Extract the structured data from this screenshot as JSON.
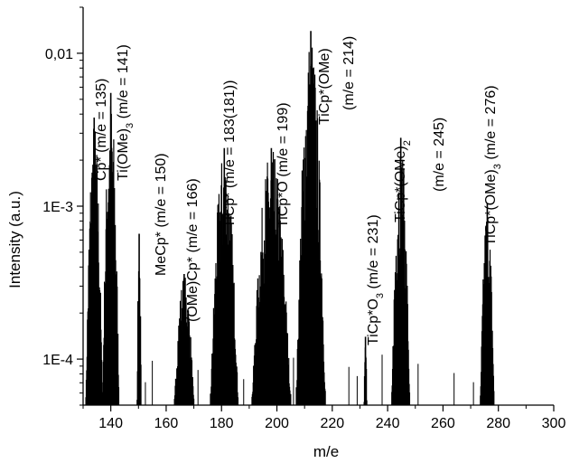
{
  "chart_data": {
    "type": "bar",
    "xlabel": "m/e",
    "ylabel": "Intensity (a.u.)",
    "xlim": [
      130,
      300
    ],
    "ylim": [
      5e-05,
      0.02
    ],
    "y_scale": "log",
    "x_ticks": [
      {
        "value": 140,
        "label": "140"
      },
      {
        "value": 160,
        "label": "160"
      },
      {
        "value": 180,
        "label": "180"
      },
      {
        "value": 200,
        "label": "200"
      },
      {
        "value": 220,
        "label": "220"
      },
      {
        "value": 240,
        "label": "240"
      },
      {
        "value": 260,
        "label": "260"
      },
      {
        "value": 280,
        "label": "280"
      },
      {
        "value": 300,
        "label": "300"
      }
    ],
    "y_ticks": [
      {
        "value": 0.0001,
        "label": "1E-4"
      },
      {
        "value": 0.001,
        "label": "1E-3"
      },
      {
        "value": 0.01,
        "label": "0,01"
      }
    ],
    "grid": false,
    "peak_groups": [
      {
        "lo": 131.0,
        "hi": 137.0,
        "max": 0.0038
      },
      {
        "lo": 137.0,
        "hi": 143.0,
        "max": 0.0055
      },
      {
        "lo": 149.5,
        "hi": 151.0,
        "max": 0.00066
      },
      {
        "lo": 163.0,
        "hi": 170.0,
        "max": 0.00036
      },
      {
        "lo": 176.0,
        "hi": 186.0,
        "max": 0.0024
      },
      {
        "lo": 191.0,
        "hi": 205.0,
        "max": 0.0024
      },
      {
        "lo": 207.0,
        "hi": 217.5,
        "max": 0.014
      },
      {
        "lo": 231.5,
        "hi": 232.5,
        "max": 0.00014
      },
      {
        "lo": 241.5,
        "hi": 248.0,
        "max": 0.0028
      },
      {
        "lo": 273.5,
        "hi": 278.5,
        "max": 0.00105
      }
    ],
    "annotations": [
      {
        "text": "Cp* (m/e = 135)",
        "x": 135
      },
      {
        "text": "Ti(OMe)",
        "sub": "3",
        "tail": " (m/e = 141)",
        "x": 141
      },
      {
        "text": "MeCp* (m/e = 150)",
        "x": 150
      },
      {
        "text": "(OMe)Cp* (m/e = 166)",
        "x": 166
      },
      {
        "text": "TiCp* (m/e = 183(181))",
        "x": 181
      },
      {
        "text": "TiCp*O (m/e = 199)",
        "x": 199
      },
      {
        "text": "TiCp*(OMe)",
        "x": 214
      },
      {
        "text": "(m/e = 214)",
        "x": 214
      },
      {
        "text": "TiCp*O",
        "sub": "3",
        "tail": " (m/e = 231)",
        "x": 231
      },
      {
        "text": "TiCp*(OMe)",
        "sub": "2",
        "tail": "",
        "x": 245
      },
      {
        "text": "(m/e = 245)",
        "x": 245
      },
      {
        "text": "TiCp*(OMe)",
        "sub": "3",
        "tail": " (m/e = 276)",
        "x": 276
      }
    ]
  }
}
